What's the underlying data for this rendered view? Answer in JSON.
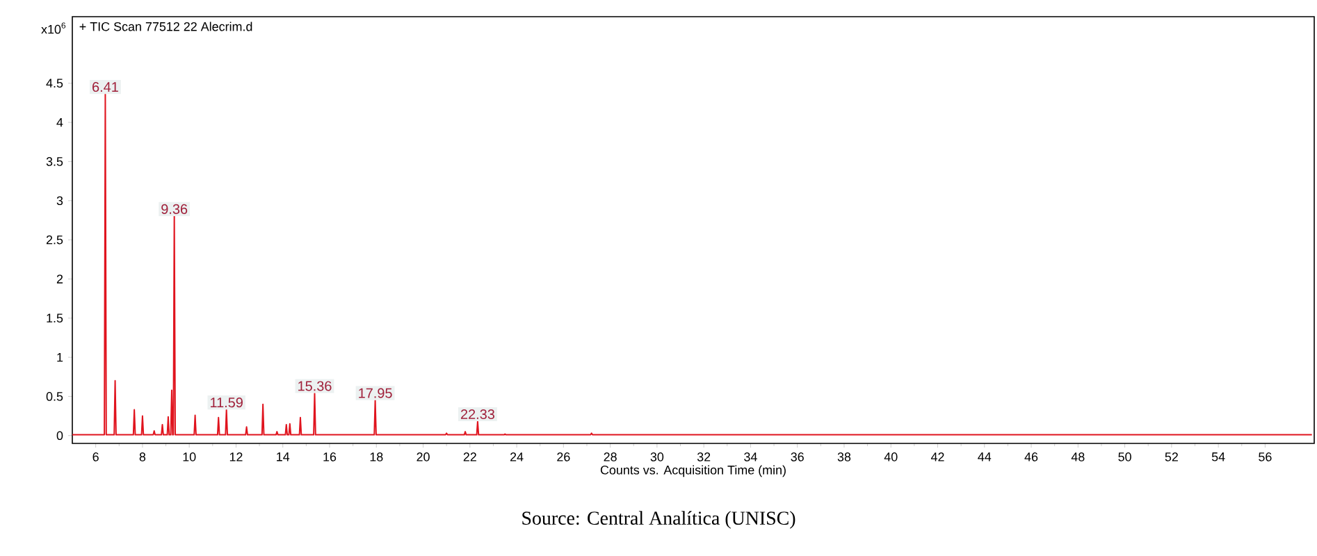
{
  "chart_data": {
    "type": "line",
    "title": "+ TIC Scan 77512 22 Alecrim.d",
    "ylabel": "x10$^{6}$",
    "xlabel": "Counts vs. Acquisition Time (min)",
    "series": [
      {
        "color": "#e0141e",
        "x": [
          5.0,
          6.37,
          6.41,
          6.45,
          6.79,
          6.83,
          6.87,
          7.61,
          7.65,
          7.69,
          7.96,
          8.0,
          8.04,
          8.46,
          8.5,
          8.54,
          8.81,
          8.85,
          8.89,
          9.06,
          9.1,
          9.14,
          9.21,
          9.25,
          9.29,
          9.32,
          9.36,
          9.4,
          10.21,
          10.25,
          10.29,
          11.21,
          11.25,
          11.29,
          11.55,
          11.59,
          11.63,
          12.41,
          12.45,
          12.49,
          13.11,
          13.15,
          13.19,
          13.71,
          13.75,
          13.79,
          14.11,
          14.15,
          14.19,
          14.26,
          14.3,
          14.34,
          14.71,
          14.75,
          14.79,
          15.32,
          15.36,
          15.4,
          17.91,
          17.95,
          17.99,
          20.96,
          21.0,
          21.04,
          21.76,
          21.8,
          21.84,
          22.29,
          22.33,
          22.37,
          23.46,
          23.5,
          23.54,
          27.16,
          27.2,
          27.24,
          58.0
        ],
        "values": [
          0.01,
          0.01,
          4.36,
          0.01,
          0.01,
          0.7,
          0.01,
          0.01,
          0.33,
          0.01,
          0.01,
          0.25,
          0.01,
          0.01,
          0.06,
          0.01,
          0.01,
          0.14,
          0.01,
          0.01,
          0.24,
          0.01,
          0.01,
          0.58,
          0.01,
          0.01,
          2.8,
          0.01,
          0.01,
          0.26,
          0.01,
          0.01,
          0.23,
          0.01,
          0.01,
          0.33,
          0.01,
          0.01,
          0.11,
          0.01,
          0.01,
          0.4,
          0.01,
          0.01,
          0.05,
          0.01,
          0.01,
          0.14,
          0.01,
          0.01,
          0.15,
          0.01,
          0.01,
          0.23,
          0.01,
          0.01,
          0.54,
          0.01,
          0.01,
          0.45,
          0.01,
          0.01,
          0.03,
          0.01,
          0.01,
          0.05,
          0.01,
          0.01,
          0.18,
          0.01,
          0.01,
          0.02,
          0.01,
          0.01,
          0.03,
          0.01,
          0.01
        ]
      }
    ],
    "xlim": [
      5.0,
      58.1
    ],
    "ylim": [
      -0.1,
      5.35
    ],
    "xticks": [
      6,
      8,
      10,
      12,
      14,
      16,
      18,
      20,
      22,
      24,
      26,
      28,
      30,
      32,
      34,
      36,
      38,
      40,
      42,
      44,
      46,
      48,
      50,
      52,
      54,
      56
    ],
    "yticks": [
      0,
      0.5,
      1,
      1.5,
      2,
      2.5,
      3,
      3.5,
      4,
      4.5
    ],
    "grid": false,
    "marker": "none",
    "line_style": "solid",
    "annotations": [
      {
        "text": "6.41",
        "x": 6.41,
        "y": 4.36
      },
      {
        "text": "9.36",
        "x": 9.36,
        "y": 2.8
      },
      {
        "text": "11.59",
        "x": 11.59,
        "y": 0.33
      },
      {
        "text": "15.36",
        "x": 15.36,
        "y": 0.54
      },
      {
        "text": "17.95",
        "x": 17.95,
        "y": 0.45
      },
      {
        "text": "22.33",
        "x": 22.33,
        "y": 0.18
      },
      "Source: Central Analítica (UNISC)"
    ]
  }
}
